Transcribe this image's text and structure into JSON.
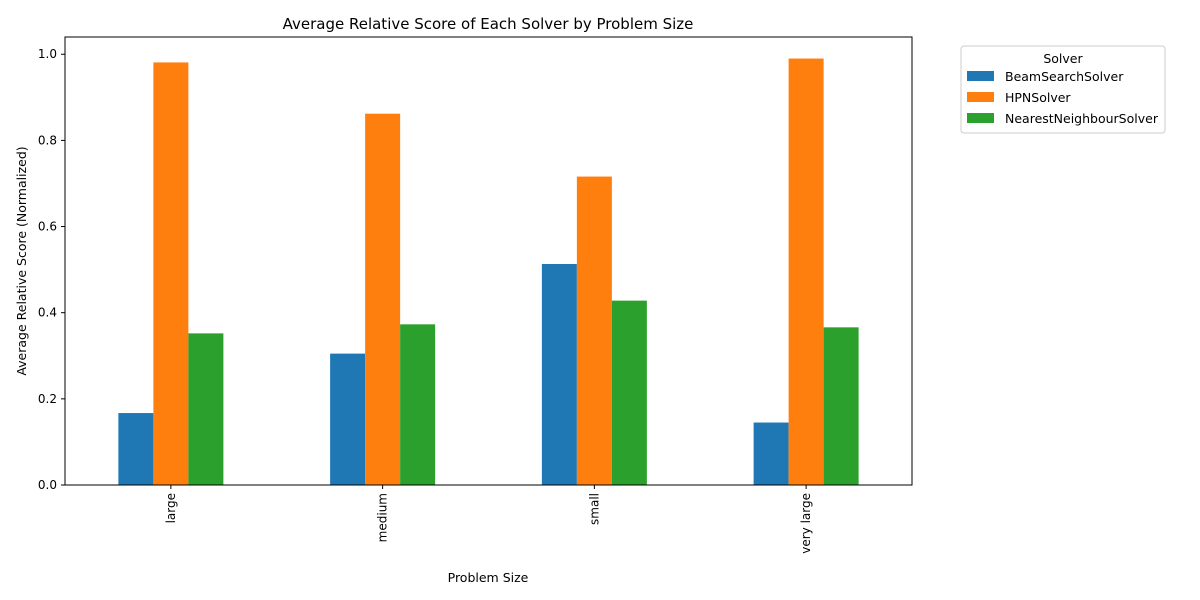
{
  "chart_data": {
    "type": "bar",
    "title": "Average Relative Score of Each Solver by Problem Size",
    "xlabel": "Problem Size",
    "ylabel": "Average Relative Score (Normalized)",
    "categories": [
      "large",
      "medium",
      "small",
      "very large"
    ],
    "series": [
      {
        "name": "BeamSearchSolver",
        "color": "#1f77b4",
        "values": [
          0.167,
          0.305,
          0.513,
          0.145
        ]
      },
      {
        "name": "HPNSolver",
        "color": "#ff7f0e",
        "values": [
          0.981,
          0.862,
          0.716,
          0.99
        ]
      },
      {
        "name": "NearestNeighbourSolver",
        "color": "#2ca02c",
        "values": [
          0.352,
          0.373,
          0.428,
          0.366
        ]
      }
    ],
    "ylim": [
      0,
      1.04
    ],
    "yticks": [
      "0.0",
      "0.2",
      "0.4",
      "0.6",
      "0.8",
      "1.0"
    ],
    "legend": {
      "title": "Solver",
      "placement": "outside-right"
    },
    "grid": false
  }
}
